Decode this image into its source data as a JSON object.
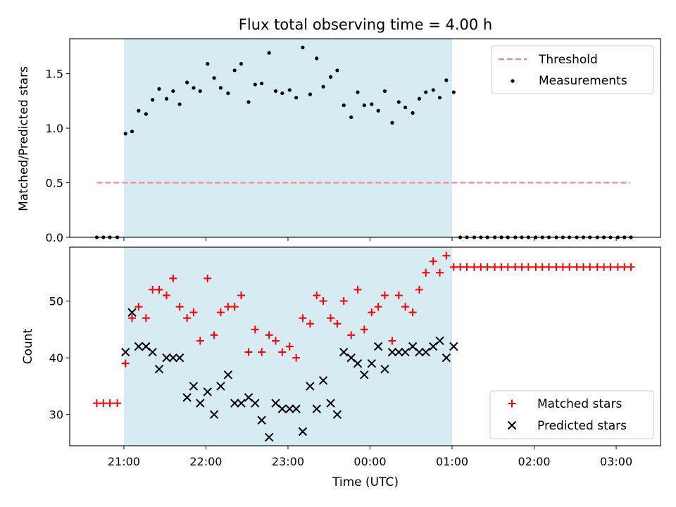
{
  "chart_data": {
    "type": "scatter",
    "title": "Flux total observing time = 4.00 h",
    "xlabel": "Time (UTC)",
    "x_unit": "hours of day (UTC), values >= 24 are after midnight",
    "x_range": [
      20.34,
      27.54
    ],
    "x_tick_values": [
      21,
      22,
      23,
      24,
      25,
      26,
      27
    ],
    "x_tick_labels": [
      "21:00",
      "22:00",
      "23:00",
      "00:00",
      "01:00",
      "02:00",
      "03:00"
    ],
    "shaded_interval": [
      21.0,
      25.0
    ],
    "colors": {
      "shade": "#add8e6",
      "threshold": "#ff7f7f",
      "measurements": "#000000",
      "matched": "#ff0000",
      "predicted": "#000000"
    },
    "top_panel": {
      "ylabel": "Matched/Predicted stars",
      "ylim": [
        0,
        1.82
      ],
      "y_tick_values": [
        0,
        0.5,
        1.0,
        1.5
      ],
      "y_tick_labels": [
        "0.0",
        "0.5",
        "1.0",
        "1.5"
      ],
      "legend_position": "upper right",
      "threshold": {
        "name": "Threshold",
        "y": 0.5,
        "x": [
          20.67,
          27.17
        ]
      },
      "measurements": {
        "name": "Measurements",
        "x": [
          20.67,
          20.75,
          20.83,
          20.92,
          21.02,
          21.1,
          21.18,
          21.27,
          21.35,
          21.43,
          21.52,
          21.6,
          21.68,
          21.77,
          21.85,
          21.93,
          22.02,
          22.1,
          22.18,
          22.27,
          22.35,
          22.43,
          22.52,
          22.6,
          22.68,
          22.77,
          22.85,
          22.93,
          23.02,
          23.1,
          23.18,
          23.27,
          23.35,
          23.43,
          23.52,
          23.6,
          23.68,
          23.77,
          23.85,
          23.93,
          24.02,
          24.1,
          24.18,
          24.27,
          24.35,
          24.43,
          24.52,
          24.6,
          24.68,
          24.77,
          24.85,
          24.93,
          25.02,
          25.1,
          25.18,
          25.27,
          25.35,
          25.43,
          25.52,
          25.6,
          25.68,
          25.77,
          25.85,
          25.93,
          26.02,
          26.1,
          26.18,
          26.27,
          26.35,
          26.43,
          26.52,
          26.6,
          26.68,
          26.77,
          26.85,
          26.93,
          27.02,
          27.1,
          27.18
        ],
        "y": [
          0.0,
          0.0,
          0.0,
          0.0,
          0.95,
          0.97,
          1.16,
          1.13,
          1.26,
          1.36,
          1.27,
          1.34,
          1.22,
          1.42,
          1.37,
          1.34,
          1.59,
          1.46,
          1.37,
          1.32,
          1.53,
          1.59,
          1.24,
          1.4,
          1.41,
          1.69,
          1.34,
          1.32,
          1.35,
          1.28,
          1.74,
          1.31,
          1.64,
          1.38,
          1.47,
          1.53,
          1.21,
          1.1,
          1.33,
          1.21,
          1.22,
          1.16,
          1.34,
          1.05,
          1.24,
          1.19,
          1.14,
          1.27,
          1.33,
          1.35,
          1.28,
          1.44,
          1.33,
          0.0,
          0.0,
          0.0,
          0.0,
          0.0,
          0.0,
          0.0,
          0.0,
          0.0,
          0.0,
          0.0,
          0.0,
          0.0,
          0.0,
          0.0,
          0.0,
          0.0,
          0.0,
          0.0,
          0.0,
          0.0,
          0.0,
          0.0,
          0.0,
          0.0,
          0.0
        ]
      }
    },
    "bottom_panel": {
      "ylabel": "Count",
      "ylim": [
        24.5,
        59.5
      ],
      "y_tick_values": [
        30,
        40,
        50
      ],
      "y_tick_labels": [
        "30",
        "40",
        "50"
      ],
      "legend_position": "lower right",
      "matched": {
        "name": "Matched stars",
        "x": [
          20.67,
          20.75,
          20.83,
          20.92,
          21.02,
          21.1,
          21.18,
          21.27,
          21.35,
          21.43,
          21.52,
          21.6,
          21.68,
          21.77,
          21.85,
          21.93,
          22.02,
          22.1,
          22.18,
          22.27,
          22.35,
          22.43,
          22.52,
          22.6,
          22.68,
          22.77,
          22.85,
          22.93,
          23.02,
          23.1,
          23.18,
          23.27,
          23.35,
          23.43,
          23.52,
          23.6,
          23.68,
          23.77,
          23.85,
          23.93,
          24.02,
          24.1,
          24.18,
          24.27,
          24.35,
          24.43,
          24.52,
          24.6,
          24.68,
          24.77,
          24.85,
          24.93,
          25.02,
          25.1,
          25.18,
          25.27,
          25.35,
          25.43,
          25.52,
          25.6,
          25.68,
          25.77,
          25.85,
          25.93,
          26.02,
          26.1,
          26.18,
          26.27,
          26.35,
          26.43,
          26.52,
          26.6,
          26.68,
          26.77,
          26.85,
          26.93,
          27.02,
          27.1,
          27.18
        ],
        "y": [
          32,
          32,
          32,
          32,
          39,
          47,
          49,
          47,
          52,
          52,
          51,
          54,
          49,
          47,
          48,
          43,
          54,
          44,
          48,
          49,
          49,
          51,
          41,
          45,
          41,
          44,
          43,
          41,
          42,
          40,
          47,
          46,
          51,
          50,
          47,
          46,
          50,
          44,
          52,
          45,
          48,
          49,
          51,
          43,
          51,
          49,
          48,
          52,
          55,
          57,
          55,
          58,
          56,
          56,
          56,
          56,
          56,
          56,
          56,
          56,
          56,
          56,
          56,
          56,
          56,
          56,
          56,
          56,
          56,
          56,
          56,
          56,
          56,
          56,
          56,
          56,
          56,
          56,
          56
        ]
      },
      "predicted": {
        "name": "Predicted stars",
        "x": [
          21.02,
          21.1,
          21.18,
          21.27,
          21.35,
          21.43,
          21.52,
          21.6,
          21.68,
          21.77,
          21.85,
          21.93,
          22.02,
          22.1,
          22.18,
          22.27,
          22.35,
          22.43,
          22.52,
          22.6,
          22.68,
          22.77,
          22.85,
          22.93,
          23.02,
          23.1,
          23.18,
          23.27,
          23.35,
          23.43,
          23.52,
          23.6,
          23.68,
          23.77,
          23.85,
          23.93,
          24.02,
          24.1,
          24.18,
          24.27,
          24.35,
          24.43,
          24.52,
          24.6,
          24.68,
          24.77,
          24.85,
          24.93,
          25.02
        ],
        "y": [
          41,
          48,
          42,
          42,
          41,
          38,
          40,
          40,
          40,
          33,
          35,
          32,
          34,
          30,
          35,
          37,
          32,
          32,
          33,
          32,
          29,
          26,
          32,
          31,
          31,
          31,
          27,
          35,
          31,
          36,
          32,
          30,
          41,
          40,
          39,
          37,
          39,
          42,
          38,
          41,
          41,
          41,
          42,
          41,
          41,
          42,
          43,
          40,
          42
        ]
      }
    }
  }
}
